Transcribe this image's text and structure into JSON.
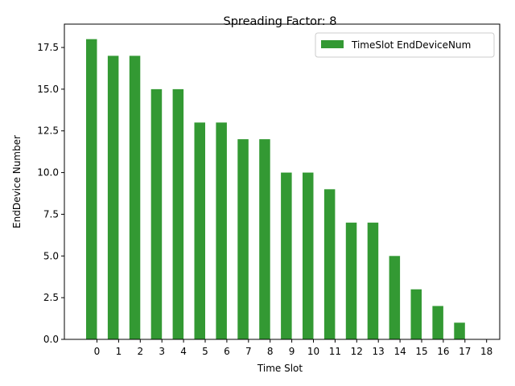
{
  "chart_data": {
    "type": "bar",
    "title": "Spreading Factor: 8",
    "xlabel": "Time Slot",
    "ylabel": "EndDevice Number",
    "categories": [
      "0",
      "1",
      "2",
      "3",
      "4",
      "5",
      "6",
      "7",
      "8",
      "9",
      "10",
      "11",
      "12",
      "13",
      "14",
      "15",
      "16",
      "17",
      "18"
    ],
    "series": [
      {
        "name": "TimeSlot EndDeviceNum",
        "color": "#339933",
        "values": [
          18,
          17,
          17,
          15,
          15,
          13,
          13,
          12,
          12,
          10,
          10,
          9,
          7,
          7,
          5,
          3,
          2,
          1,
          0
        ]
      }
    ],
    "ylim": [
      0,
      18.9
    ],
    "yticks": [
      "0.0",
      "2.5",
      "5.0",
      "7.5",
      "10.0",
      "12.5",
      "15.0",
      "17.5"
    ],
    "grid": false,
    "legend_position": "top-right"
  }
}
